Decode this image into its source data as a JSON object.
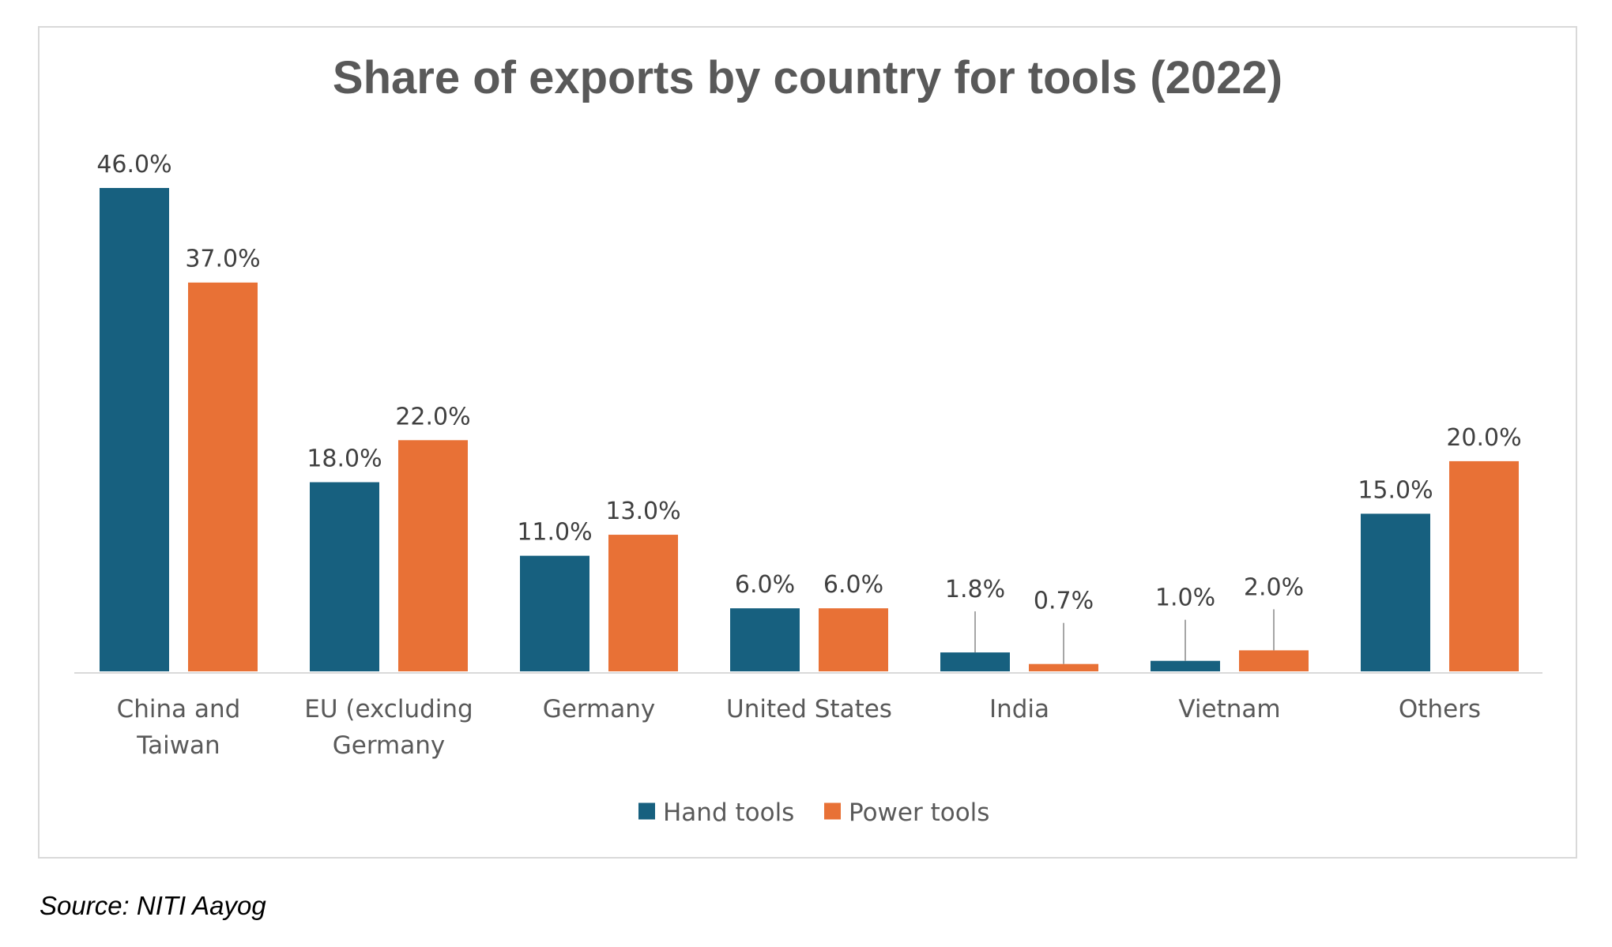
{
  "chart_data": {
    "type": "bar",
    "title": "Share of exports by country for tools (2022)",
    "categories": [
      [
        "China and",
        "Taiwan"
      ],
      [
        "EU (excluding",
        "Germany"
      ],
      [
        "Germany"
      ],
      [
        "United States"
      ],
      [
        "India"
      ],
      [
        "Vietnam"
      ],
      [
        "Others"
      ]
    ],
    "series": [
      {
        "name": "Hand tools",
        "color": "#17607f",
        "values": [
          46.0,
          18.0,
          11.0,
          6.0,
          1.8,
          1.0,
          15.0
        ],
        "labels": [
          "46.0%",
          "18.0%",
          "11.0%",
          "6.0%",
          "1.8%",
          "1.0%",
          "15.0%"
        ]
      },
      {
        "name": "Power tools",
        "color": "#e87136",
        "values": [
          37.0,
          22.0,
          13.0,
          6.0,
          0.7,
          2.0,
          20.0
        ],
        "labels": [
          "37.0%",
          "22.0%",
          "13.0%",
          "6.0%",
          "0.7%",
          "2.0%",
          "20.0%"
        ]
      }
    ],
    "ylim": [
      0,
      46
    ],
    "grid": false,
    "legend_position": "bottom",
    "data_labels": true
  },
  "source": "Source: NITI Aayog"
}
